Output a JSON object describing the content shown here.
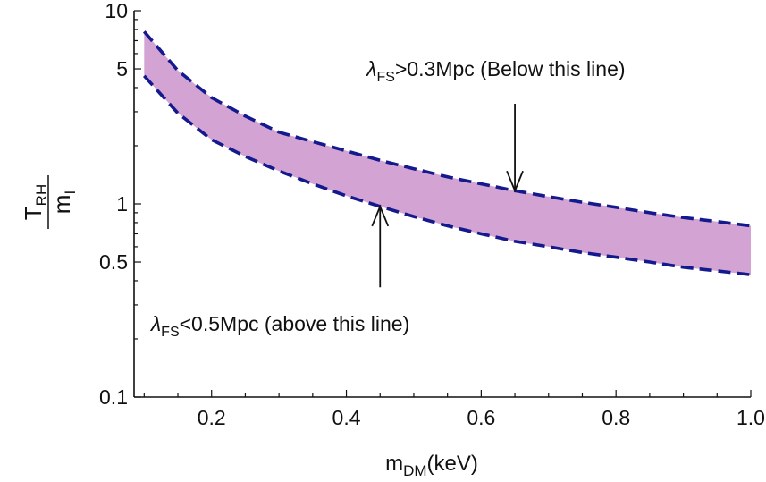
{
  "chart_data": {
    "type": "area",
    "x_axis": {
      "label_main": "m",
      "label_sub": "DM",
      "label_tail": "(keV)",
      "range": [
        0.085,
        1.0
      ],
      "ticks": [
        0.2,
        0.4,
        0.6,
        0.8,
        1.0
      ],
      "tick_labels": [
        "0.2",
        "0.4",
        "0.6",
        "0.8",
        "1.0"
      ]
    },
    "y_axis": {
      "scale": "log",
      "label_num_main": "T",
      "label_num_sub": "RH",
      "label_den_main": "m",
      "label_den_sub": "I",
      "range": [
        0.1,
        10
      ],
      "ticks": [
        0.1,
        0.5,
        1,
        5,
        10
      ],
      "tick_labels": [
        "0.1",
        "0.5",
        "1",
        "5",
        "10"
      ]
    },
    "series": [
      {
        "role": "upper-boundary",
        "x": [
          0.1,
          0.15,
          0.2,
          0.25,
          0.3,
          0.35,
          0.4,
          0.45,
          0.5,
          0.55,
          0.6,
          0.65,
          0.7,
          0.75,
          0.8,
          0.85,
          0.9,
          0.95,
          1.0
        ],
        "y": [
          7.8,
          4.9,
          3.55,
          2.85,
          2.35,
          2.1,
          1.88,
          1.68,
          1.52,
          1.38,
          1.27,
          1.17,
          1.09,
          1.02,
          0.96,
          0.9,
          0.85,
          0.81,
          0.77
        ]
      },
      {
        "role": "lower-boundary",
        "x": [
          0.1,
          0.15,
          0.2,
          0.25,
          0.3,
          0.35,
          0.4,
          0.45,
          0.5,
          0.55,
          0.6,
          0.65,
          0.7,
          0.75,
          0.8,
          0.85,
          0.9,
          0.95,
          1.0
        ],
        "y": [
          4.6,
          2.95,
          2.15,
          1.76,
          1.48,
          1.27,
          1.1,
          0.97,
          0.86,
          0.77,
          0.7,
          0.64,
          0.6,
          0.56,
          0.53,
          0.5,
          0.47,
          0.45,
          0.43
        ]
      }
    ],
    "fill_color": "#d2a3d3",
    "line_color": "#141a8e",
    "grid": false,
    "annotations": [
      {
        "symbol": "λ",
        "sub": "FS",
        "text": ">0.3Mpc (Below this line)",
        "arrow_to": [
          0.65,
          1.17
        ],
        "arrow_from_y": 3.3,
        "label_at": [
          0.43,
          5.0
        ]
      },
      {
        "symbol": "λ",
        "sub": "FS",
        "text": "<0.5Mpc (above this line)",
        "arrow_to": [
          0.45,
          0.97
        ],
        "arrow_from_y": 0.37,
        "label_at": [
          0.11,
          0.24
        ]
      }
    ]
  }
}
